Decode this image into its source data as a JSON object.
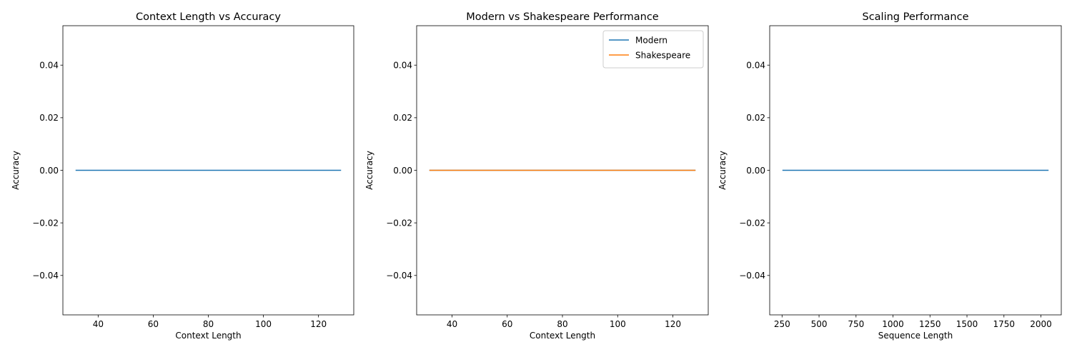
{
  "figure": {
    "background": "#ffffff"
  },
  "colors": {
    "blue": "#1f77b4",
    "orange": "#ff7f0e",
    "axes": "#000000",
    "legend_border": "#cccccc"
  },
  "chart_data": [
    {
      "type": "line",
      "title": "Context Length vs Accuracy",
      "xlabel": "Context Length",
      "ylabel": "Accuracy",
      "xlim": [
        27.2,
        132.8
      ],
      "ylim": [
        -0.055,
        0.055
      ],
      "xticks": [
        40,
        60,
        80,
        100,
        120
      ],
      "xtick_labels": [
        "40",
        "60",
        "80",
        "100",
        "120"
      ],
      "yticks": [
        -0.04,
        -0.02,
        0.0,
        0.02,
        0.04
      ],
      "ytick_labels": [
        "−0.04",
        "−0.02",
        "0.00",
        "0.02",
        "0.04"
      ],
      "grid": false,
      "legend": null,
      "series": [
        {
          "color": "#1f77b4",
          "x": [
            32,
            64,
            128
          ],
          "y": [
            0.0,
            0.0,
            0.0
          ]
        }
      ]
    },
    {
      "type": "line",
      "title": "Modern vs Shakespeare Performance",
      "xlabel": "Context Length",
      "ylabel": "Accuracy",
      "xlim": [
        27.2,
        132.8
      ],
      "ylim": [
        -0.055,
        0.055
      ],
      "xticks": [
        40,
        60,
        80,
        100,
        120
      ],
      "xtick_labels": [
        "40",
        "60",
        "80",
        "100",
        "120"
      ],
      "yticks": [
        -0.04,
        -0.02,
        0.0,
        0.02,
        0.04
      ],
      "ytick_labels": [
        "−0.04",
        "−0.02",
        "0.00",
        "0.02",
        "0.04"
      ],
      "grid": false,
      "legend": "top-right",
      "series": [
        {
          "name": "Modern",
          "color": "#1f77b4",
          "x": [
            32,
            64,
            128
          ],
          "y": [
            0.0,
            0.0,
            0.0
          ]
        },
        {
          "name": "Shakespeare",
          "color": "#ff7f0e",
          "x": [
            32,
            64,
            128
          ],
          "y": [
            0.0,
            0.0,
            0.0
          ]
        }
      ]
    },
    {
      "type": "line",
      "title": "Scaling Performance",
      "xlabel": "Sequence Length",
      "ylabel": "Accuracy",
      "xlim": [
        166.4,
        2137.6
      ],
      "ylim": [
        -0.055,
        0.055
      ],
      "xticks": [
        250,
        500,
        750,
        1000,
        1250,
        1500,
        1750,
        2000
      ],
      "xtick_labels": [
        "250",
        "500",
        "750",
        "1000",
        "1250",
        "1500",
        "1750",
        "2000"
      ],
      "yticks": [
        -0.04,
        -0.02,
        0.0,
        0.02,
        0.04
      ],
      "ytick_labels": [
        "−0.04",
        "−0.02",
        "0.00",
        "0.02",
        "0.04"
      ],
      "grid": false,
      "legend": null,
      "series": [
        {
          "color": "#1f77b4",
          "x": [
            256,
            512,
            1024,
            2048
          ],
          "y": [
            0.0,
            0.0,
            0.0,
            0.0
          ]
        }
      ]
    }
  ]
}
